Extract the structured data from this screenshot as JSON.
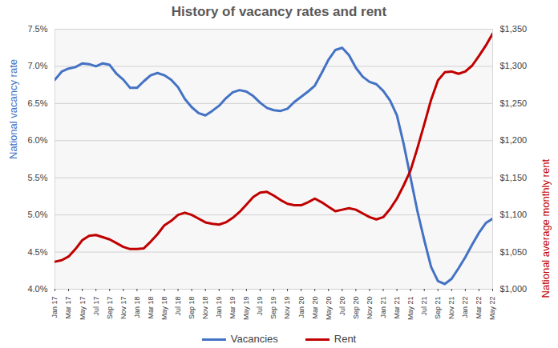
{
  "chart_data": {
    "type": "line",
    "title": "History of vacancy rates and rent",
    "y_label": "National vacancy rate",
    "y2_label": "National average monthly rent",
    "categories": [
      "Jan 17",
      null,
      "Mar 17",
      null,
      "May 17",
      null,
      "Jul 17",
      null,
      "Sep 17",
      null,
      "Nov 17",
      null,
      "Jan 18",
      null,
      "Mar 18",
      null,
      "May 18",
      null,
      "Jul 18",
      null,
      "Sep 18",
      null,
      "Nov 18",
      null,
      "Jan 19",
      null,
      "Mar 19",
      null,
      "May 19",
      null,
      "Jul 19",
      null,
      "Sep 19",
      null,
      "Nov 19",
      null,
      "Jan 20",
      null,
      "Mar 20",
      null,
      "May 20",
      null,
      "Jul 20",
      null,
      "Sep 20",
      null,
      "Nov 20",
      null,
      "Jan 21",
      null,
      "Mar 21",
      null,
      "May 21",
      null,
      "Jul 21",
      null,
      "Sep 21",
      null,
      "Nov 21",
      null,
      "Jan 22",
      null,
      "Mar 22",
      null,
      "May 22"
    ],
    "series": [
      {
        "name": "Vacancies",
        "color": "#4472c4",
        "axis": "y",
        "values": [
          6.82,
          6.93,
          6.97,
          6.99,
          7.04,
          7.03,
          7.0,
          7.04,
          7.02,
          6.9,
          6.82,
          6.71,
          6.71,
          6.8,
          6.88,
          6.91,
          6.88,
          6.82,
          6.72,
          6.56,
          6.45,
          6.37,
          6.34,
          6.4,
          6.47,
          6.57,
          6.65,
          6.68,
          6.66,
          6.6,
          6.51,
          6.44,
          6.41,
          6.4,
          6.43,
          6.52,
          6.59,
          6.66,
          6.74,
          6.91,
          7.09,
          7.22,
          7.25,
          7.15,
          6.98,
          6.86,
          6.79,
          6.76,
          6.67,
          6.54,
          6.34,
          5.95,
          5.5,
          5.05,
          4.66,
          4.3,
          4.11,
          4.07,
          4.14,
          4.28,
          4.43,
          4.6,
          4.76,
          4.89,
          4.95
        ]
      },
      {
        "name": "Rent",
        "color": "#c00000",
        "axis": "y2",
        "values": [
          1037,
          1039,
          1044,
          1054,
          1066,
          1072,
          1073,
          1070,
          1067,
          1062,
          1057,
          1054,
          1054,
          1055,
          1064,
          1074,
          1086,
          1092,
          1100,
          1103,
          1100,
          1095,
          1090,
          1088,
          1087,
          1090,
          1096,
          1104,
          1114,
          1124,
          1130,
          1131,
          1126,
          1120,
          1115,
          1113,
          1113,
          1117,
          1122,
          1117,
          1111,
          1105,
          1107,
          1109,
          1107,
          1102,
          1097,
          1094,
          1097,
          1108,
          1122,
          1140,
          1160,
          1190,
          1222,
          1255,
          1281,
          1292,
          1293,
          1290,
          1293,
          1301,
          1314,
          1328,
          1344
        ]
      }
    ],
    "ylim": [
      4.0,
      7.5
    ],
    "yticks": [
      {
        "value": 4.0,
        "label": "4.0%"
      },
      {
        "value": 4.5,
        "label": "4.5%"
      },
      {
        "value": 5.0,
        "label": "5.0%"
      },
      {
        "value": 5.5,
        "label": "5.5%"
      },
      {
        "value": 6.0,
        "label": "6.0%"
      },
      {
        "value": 6.5,
        "label": "6.5%"
      },
      {
        "value": 7.0,
        "label": "7.0%"
      },
      {
        "value": 7.5,
        "label": "7.5%"
      }
    ],
    "y2lim": [
      1000,
      1350
    ],
    "y2ticks": [
      {
        "value": 1000,
        "label": "$1,000"
      },
      {
        "value": 1050,
        "label": "$1,050"
      },
      {
        "value": 1100,
        "label": "$1,100"
      },
      {
        "value": 1150,
        "label": "$1,150"
      },
      {
        "value": 1200,
        "label": "$1,200"
      },
      {
        "value": 1250,
        "label": "$1,250"
      },
      {
        "value": 1300,
        "label": "$1,300"
      },
      {
        "value": 1350,
        "label": "$1,350"
      }
    ],
    "grid": true,
    "legend": "bottom"
  }
}
